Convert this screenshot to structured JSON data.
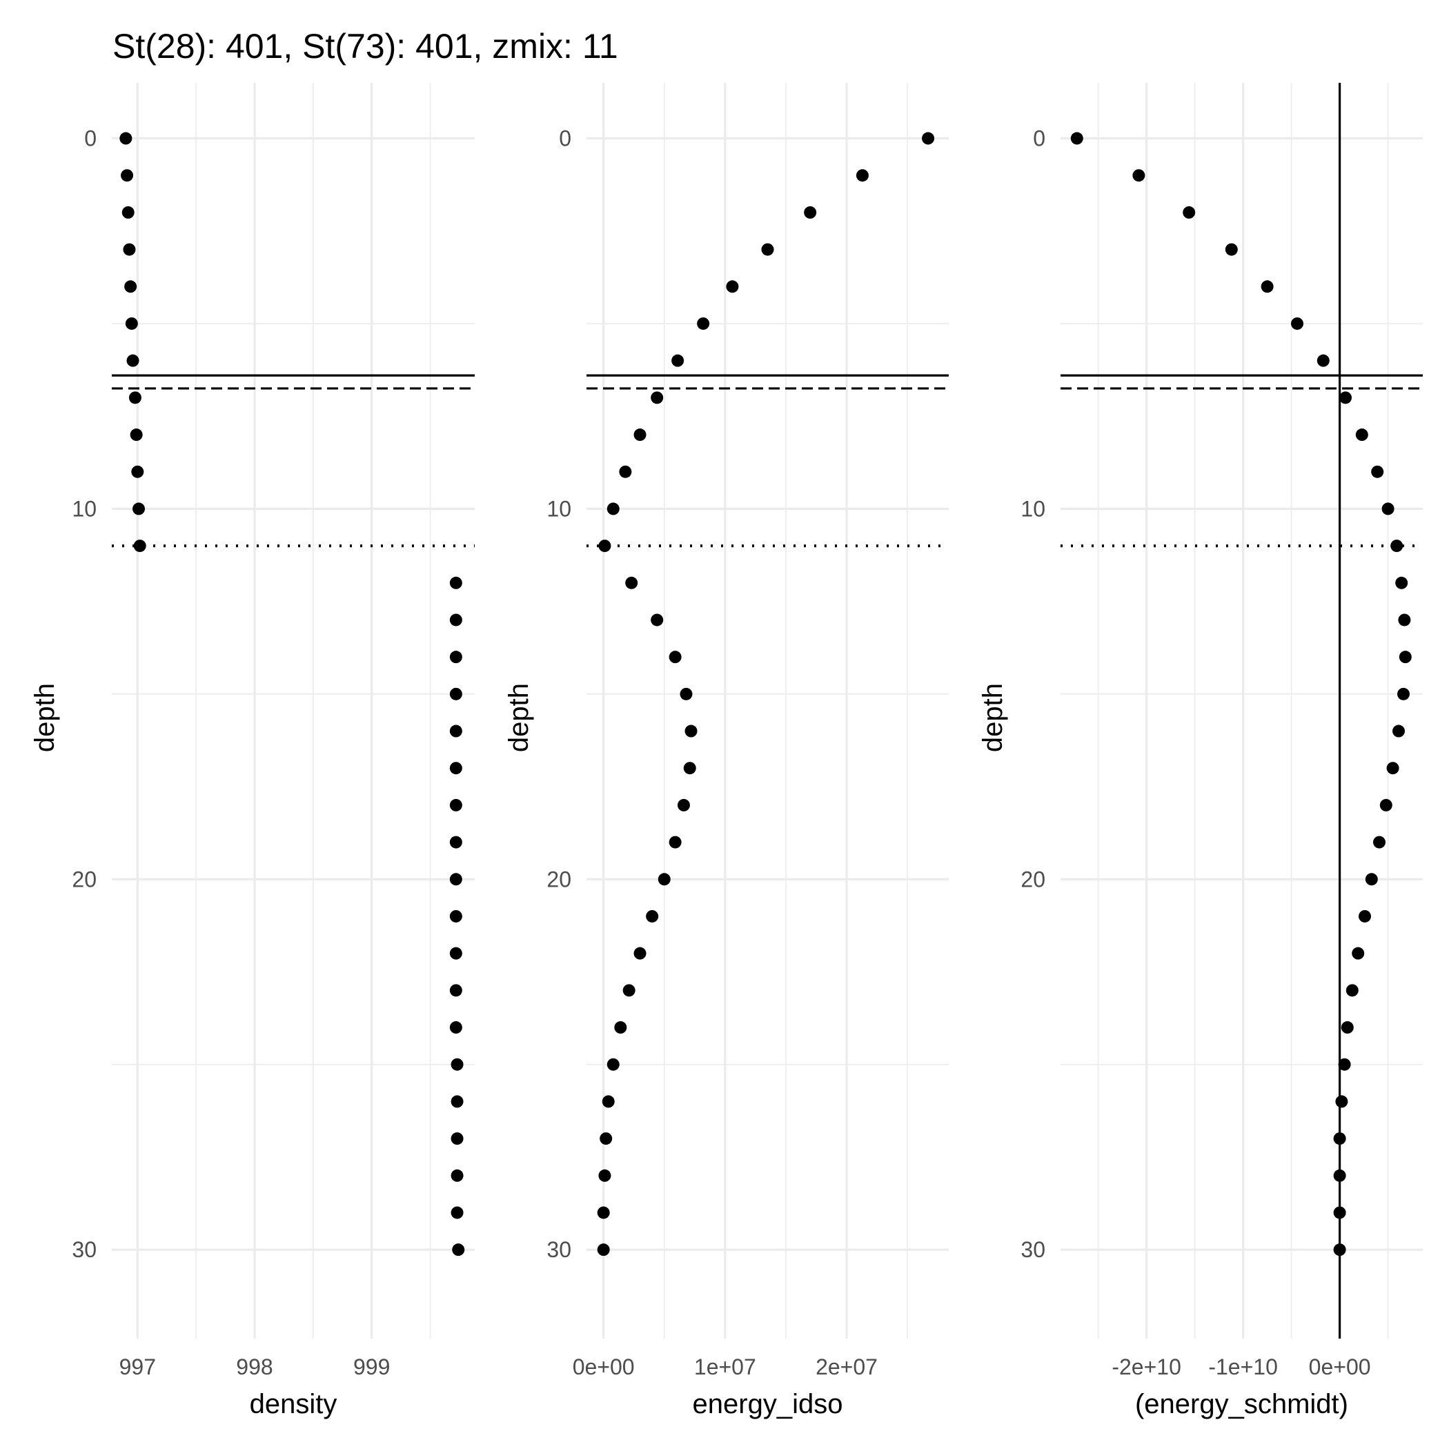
{
  "title": "St(28): 401, St(73): 401, zmix: 11",
  "chart_data": [
    {
      "type": "scatter",
      "xlabel": "density",
      "ylabel": "depth",
      "x_ticks": [
        997,
        998,
        999
      ],
      "x_tick_labels": [
        "997",
        "998",
        "999"
      ],
      "y_ticks": [
        0,
        10,
        20,
        30
      ],
      "y_tick_labels": [
        "0",
        "10",
        "20",
        "30"
      ],
      "xlim": [
        996.78,
        999.88
      ],
      "ylim": [
        32.4,
        -1.5
      ],
      "y_reversed": true,
      "grid": true,
      "hlines": [
        {
          "y": 6.4,
          "style": "solid"
        },
        {
          "y": 6.75,
          "style": "dashed"
        },
        {
          "y": 11,
          "style": "dotted"
        }
      ],
      "vlines": [],
      "points": {
        "y": [
          0,
          1,
          2,
          3,
          4,
          5,
          6,
          7,
          8,
          9,
          10,
          11,
          12,
          13,
          14,
          15,
          16,
          17,
          18,
          19,
          20,
          21,
          22,
          23,
          24,
          25,
          26,
          27,
          28,
          29,
          30
        ],
        "x": [
          996.9,
          996.91,
          996.92,
          996.93,
          996.94,
          996.95,
          996.96,
          996.98,
          996.99,
          997.0,
          997.01,
          997.02,
          999.72,
          999.72,
          999.72,
          999.72,
          999.72,
          999.72,
          999.72,
          999.72,
          999.72,
          999.72,
          999.72,
          999.72,
          999.72,
          999.73,
          999.73,
          999.73,
          999.73,
          999.73,
          999.74
        ]
      }
    },
    {
      "type": "scatter",
      "xlabel": "energy_idso",
      "ylabel": "depth",
      "x_ticks": [
        0,
        10000000,
        20000000
      ],
      "x_tick_labels": [
        "0e+00",
        "1e+07",
        "2e+07"
      ],
      "y_ticks": [
        0,
        10,
        20,
        30
      ],
      "y_tick_labels": [
        "0",
        "10",
        "20",
        "30"
      ],
      "xlim": [
        -1400000,
        28400000
      ],
      "ylim": [
        32.4,
        -1.5
      ],
      "y_reversed": true,
      "grid": true,
      "hlines": [
        {
          "y": 6.4,
          "style": "solid"
        },
        {
          "y": 6.75,
          "style": "dashed"
        },
        {
          "y": 11,
          "style": "dotted"
        }
      ],
      "vlines": [],
      "points": {
        "y": [
          0,
          1,
          2,
          3,
          4,
          5,
          6,
          7,
          8,
          9,
          10,
          11,
          12,
          13,
          14,
          15,
          16,
          17,
          18,
          19,
          20,
          21,
          22,
          23,
          24,
          25,
          26,
          27,
          28,
          29,
          30
        ],
        "x": [
          26700000,
          21300000,
          17000000,
          13500000,
          10600000,
          8200000,
          6100000,
          4400000,
          3000000,
          1800000,
          800000,
          100000,
          2300000,
          4400000,
          5900000,
          6800000,
          7200000,
          7100000,
          6600000,
          5900000,
          5000000,
          4000000,
          3000000,
          2100000,
          1400000,
          800000,
          400000,
          200000,
          100000,
          0,
          0
        ]
      }
    },
    {
      "type": "scatter",
      "xlabel": "(energy_schmidt)",
      "ylabel": "depth",
      "x_ticks": [
        -20000000000,
        -10000000000,
        0
      ],
      "x_tick_labels": [
        "-2e+10",
        "-1e+10",
        "0e+00"
      ],
      "y_ticks": [
        0,
        10,
        20,
        30
      ],
      "y_tick_labels": [
        "0",
        "10",
        "20",
        "30"
      ],
      "xlim": [
        -28900000000,
        8600000000
      ],
      "ylim": [
        32.4,
        -1.5
      ],
      "y_reversed": true,
      "grid": true,
      "hlines": [
        {
          "y": 6.4,
          "style": "solid"
        },
        {
          "y": 6.75,
          "style": "dashed"
        },
        {
          "y": 11,
          "style": "dotted"
        }
      ],
      "vlines": [
        {
          "x": 0,
          "style": "solid"
        }
      ],
      "points": {
        "y": [
          0,
          1,
          2,
          3,
          4,
          5,
          6,
          7,
          8,
          9,
          10,
          11,
          12,
          13,
          14,
          15,
          16,
          17,
          18,
          19,
          20,
          21,
          22,
          23,
          24,
          25,
          26,
          27,
          28,
          29,
          30
        ],
        "x": [
          -27200000000,
          -20800000000,
          -15600000000,
          -11200000000,
          -7500000000,
          -4400000000,
          -1700000000,
          600000000,
          2300000000,
          3900000000,
          5000000000,
          5900000000,
          6400000000,
          6700000000,
          6800000000,
          6600000000,
          6100000000,
          5500000000,
          4800000000,
          4100000000,
          3300000000,
          2600000000,
          1900000000,
          1300000000,
          800000000,
          500000000,
          200000000,
          0,
          0,
          0,
          0
        ]
      }
    }
  ]
}
